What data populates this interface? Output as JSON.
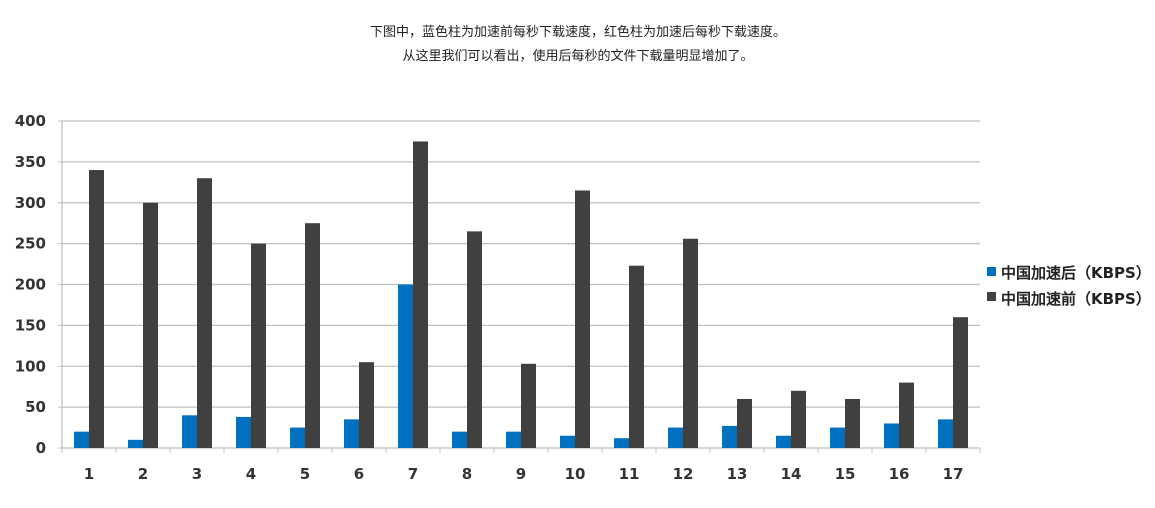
{
  "chart_data": {
    "type": "bar",
    "caption_lines": [
      "下图中，蓝色柱为加速前每秒下载速度，红色柱为加速后每秒下载速度。",
      "从这里我们可以看出，使用后每秒的文件下载量明显增加了。"
    ],
    "categories": [
      "1",
      "2",
      "3",
      "4",
      "5",
      "6",
      "7",
      "8",
      "9",
      "10",
      "11",
      "12",
      "13",
      "14",
      "15",
      "16",
      "17"
    ],
    "series": [
      {
        "name": "中国加速后（KBPS）",
        "color": "#0070c0",
        "values": [
          20,
          10,
          40,
          38,
          25,
          35,
          200,
          20,
          20,
          15,
          12,
          25,
          27,
          15,
          25,
          30,
          35
        ]
      },
      {
        "name": "中国加速前（KBPS）",
        "color": "#404040",
        "values": [
          340,
          300,
          330,
          250,
          275,
          105,
          375,
          265,
          103,
          315,
          223,
          256,
          60,
          70,
          60,
          80,
          160
        ]
      }
    ],
    "yticks": [
      "0",
      "50",
      "100",
      "150",
      "200",
      "250",
      "300",
      "350",
      "400"
    ],
    "ylim": [
      0,
      400
    ],
    "grid": true,
    "legend_position": "right",
    "xlabel": "",
    "ylabel": ""
  }
}
